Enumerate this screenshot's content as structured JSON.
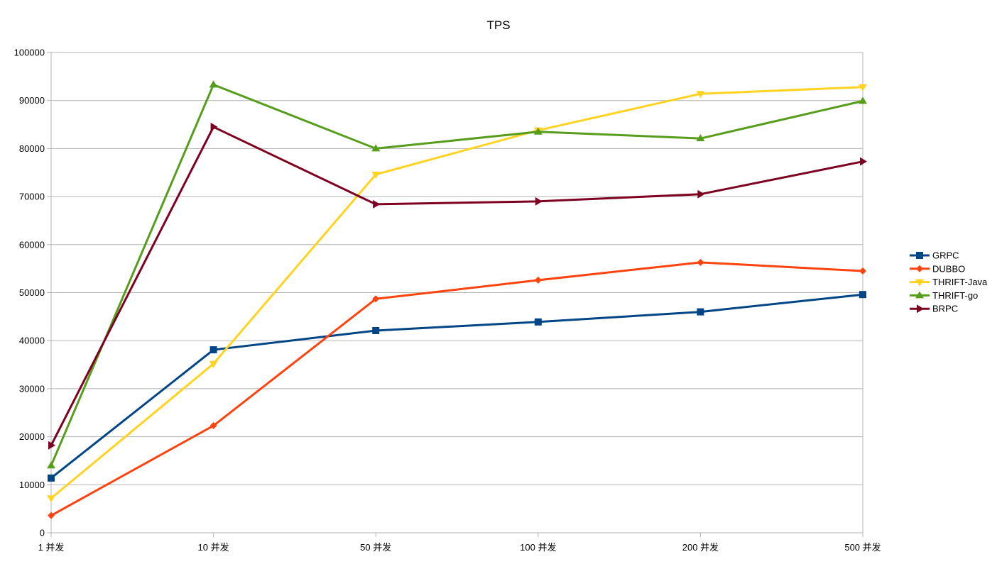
{
  "chart_data": {
    "type": "line",
    "title": "TPS",
    "xlabel": "",
    "ylabel": "",
    "categories": [
      "1 并发",
      "10 并发",
      "50 并发",
      "100 并发",
      "200 并发",
      "500 并发"
    ],
    "ylim": [
      0,
      100000
    ],
    "yticks": [
      0,
      10000,
      20000,
      30000,
      40000,
      50000,
      60000,
      70000,
      80000,
      90000,
      100000
    ],
    "grid": true,
    "legend_position": "right",
    "series": [
      {
        "name": "GRPC",
        "color": "#004586",
        "marker": "square",
        "values": [
          11400,
          38100,
          42100,
          43900,
          46000,
          49600
        ]
      },
      {
        "name": "DUBBO",
        "color": "#ff420e",
        "marker": "diamond",
        "values": [
          3600,
          22300,
          48700,
          52600,
          56300,
          54500
        ]
      },
      {
        "name": "THRIFT-Java",
        "color": "#ffd320",
        "marker": "triangle-down",
        "values": [
          7200,
          35200,
          74600,
          83800,
          91400,
          92800
        ]
      },
      {
        "name": "THRIFT-go",
        "color": "#579d1c",
        "marker": "triangle-up",
        "values": [
          14000,
          93300,
          80000,
          83500,
          82100,
          89900
        ]
      },
      {
        "name": "BRPC",
        "color": "#7e0021",
        "marker": "triangle-right",
        "values": [
          18200,
          84500,
          68400,
          69000,
          70500,
          77300
        ]
      }
    ]
  }
}
